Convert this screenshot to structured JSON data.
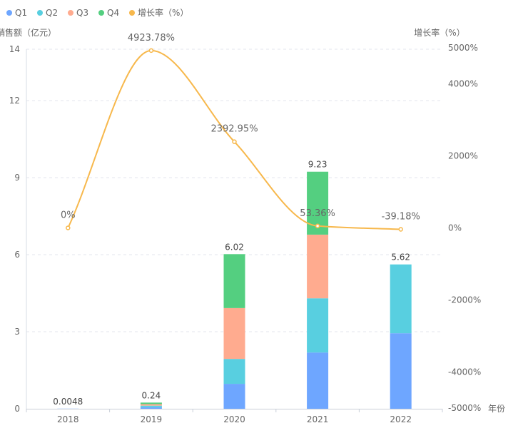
{
  "chart_data": {
    "type": "bar",
    "categories": [
      "2018",
      "2019",
      "2020",
      "2021",
      "2022"
    ],
    "xlabel": "年份",
    "ylabel": "销售额（亿元）",
    "ylabel_right": "增长率（%）",
    "ylim": [
      0,
      14
    ],
    "yticks": [
      0,
      3,
      6,
      9,
      12,
      14
    ],
    "ylim_right": [
      -5000,
      5000
    ],
    "yticks_right": [
      "-5000%",
      "-4000%",
      "-2000%",
      "0%",
      "2000%",
      "4000%",
      "5000%"
    ],
    "yticks_right_values": [
      -5000,
      -4000,
      -2000,
      0,
      2000,
      4000,
      5000
    ],
    "grid": true,
    "legend_position": "top-left",
    "series": [
      {
        "name": "Q1",
        "color": "#6ea6ff",
        "values": [
          0.0048,
          0.06,
          0.97,
          2.19,
          2.94
        ]
      },
      {
        "name": "Q2",
        "color": "#58cfe0",
        "values": [
          0,
          0.06,
          0.97,
          2.11,
          2.68
        ]
      },
      {
        "name": "Q3",
        "color": "#ffab8f",
        "values": [
          0,
          0.06,
          1.98,
          2.48,
          0
        ]
      },
      {
        "name": "Q4",
        "color": "#54cf80",
        "values": [
          0,
          0.06,
          2.1,
          2.45,
          0
        ]
      }
    ],
    "totals": [
      "0.0048",
      "0.24",
      "6.02",
      "9.23",
      "5.62"
    ],
    "totals_values": [
      0.0048,
      0.24,
      6.02,
      9.23,
      5.62
    ],
    "line": {
      "name": "增长率（%）",
      "color": "#f7b84c",
      "values": [
        0,
        4923.78,
        2392.95,
        53.36,
        -39.18
      ],
      "labels": [
        "0%",
        "4923.78%",
        "2392.95%",
        "53.36%",
        "-39.18%"
      ]
    }
  }
}
